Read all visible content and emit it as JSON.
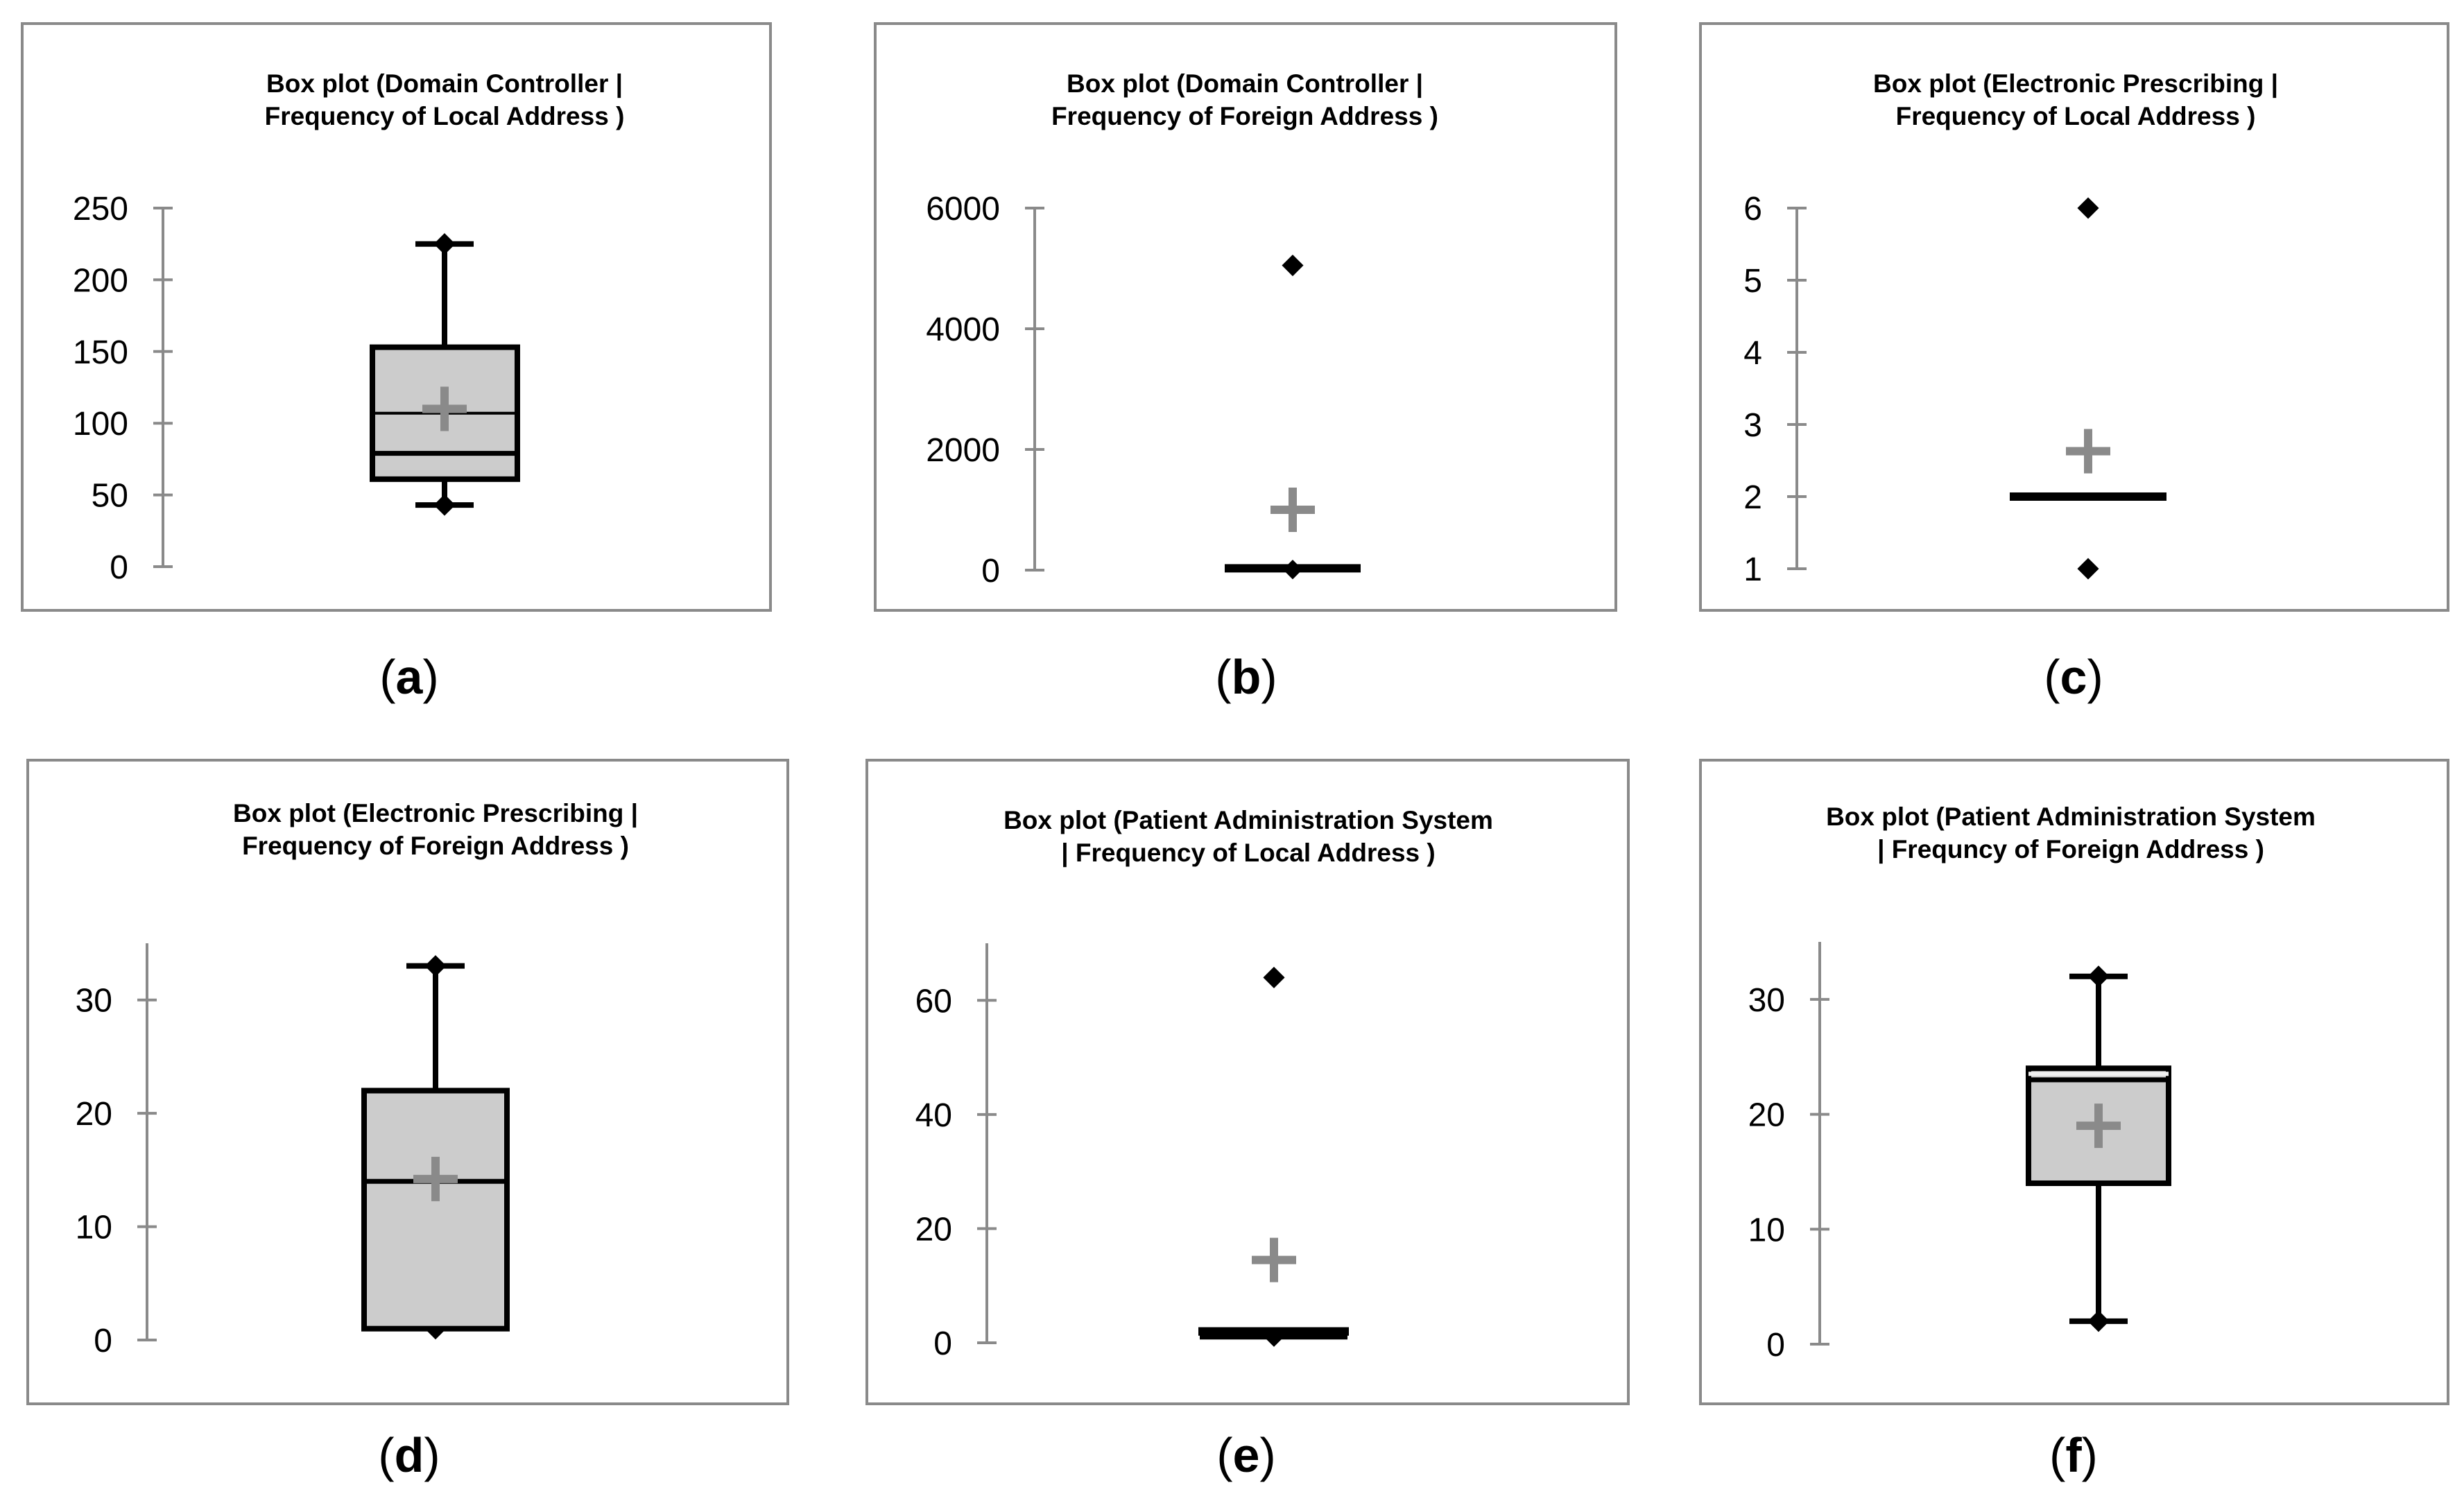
{
  "chart_data": [
    {
      "type": "box",
      "caption": "(a)",
      "title_lines": [
        "Box plot (Domain Controller |",
        "Frequency of Local Address )"
      ],
      "y_ticks": [
        "0",
        "50",
        "100",
        "150",
        "200",
        "250"
      ],
      "ylim": [
        0,
        250
      ],
      "box": {
        "whisker_low": 43,
        "q1": 61,
        "median": 79,
        "q3": 153,
        "whisker_high": 225,
        "mean": 110,
        "mean_line": 107
      },
      "outliers": []
    },
    {
      "type": "box",
      "caption": "(b)",
      "title_lines": [
        "Box plot (Domain Controller |",
        "Frequency of Foreign Address )"
      ],
      "y_ticks": [
        "0",
        "2000",
        "4000",
        "6000"
      ],
      "ylim": [
        0,
        6000
      ],
      "box": {
        "whisker_low": 10,
        "q1": 10,
        "median": 10,
        "q3": 30,
        "whisker_high": 30,
        "mean": 1000
      },
      "outliers": [
        5050
      ]
    },
    {
      "type": "box",
      "caption": "(c)",
      "title_lines": [
        "Box plot (Electronic Prescribing |",
        "Frequency of Local Address )"
      ],
      "y_ticks": [
        "1",
        "2",
        "3",
        "4",
        "5",
        "6"
      ],
      "ylim": [
        1,
        6
      ],
      "box": {
        "whisker_low": 2,
        "q1": 2,
        "median": 2,
        "q3": 2,
        "whisker_high": 2,
        "mean": 2.63
      },
      "outliers": [
        1,
        6
      ]
    },
    {
      "type": "box",
      "caption": "(d)",
      "title_lines": [
        "Box plot (Electronic Prescribing |",
        "Frequency of Foreign Address )"
      ],
      "y_ticks": [
        "0",
        "10",
        "20",
        "30"
      ],
      "ylim": [
        0,
        35
      ],
      "box": {
        "whisker_low": 1,
        "q1": 1,
        "median": 14,
        "q3": 22,
        "whisker_high": 33,
        "mean": 14.2
      },
      "outliers": []
    },
    {
      "type": "box",
      "caption": "(e)",
      "title_lines": [
        "Box plot (Patient Administration System",
        "| Frequency of Local Address )"
      ],
      "y_ticks": [
        "0",
        "20",
        "40",
        "60"
      ],
      "ylim": [
        0,
        70
      ],
      "box": {
        "whisker_low": 1,
        "q1": 1,
        "median": 1,
        "q3": 2,
        "whisker_high": 2,
        "mean": 14.5
      },
      "outliers": [
        64
      ]
    },
    {
      "type": "box",
      "caption": "(f)",
      "title_lines": [
        "Box plot (Patient Administration System",
        "| Frequncy of Foreign Address )"
      ],
      "y_ticks": [
        "0",
        "10",
        "20",
        "30"
      ],
      "ylim": [
        0,
        35
      ],
      "box": {
        "whisker_low": 2,
        "q1": 14,
        "median": 23,
        "q3": 24,
        "whisker_high": 32,
        "mean": 19
      },
      "outliers": []
    }
  ]
}
